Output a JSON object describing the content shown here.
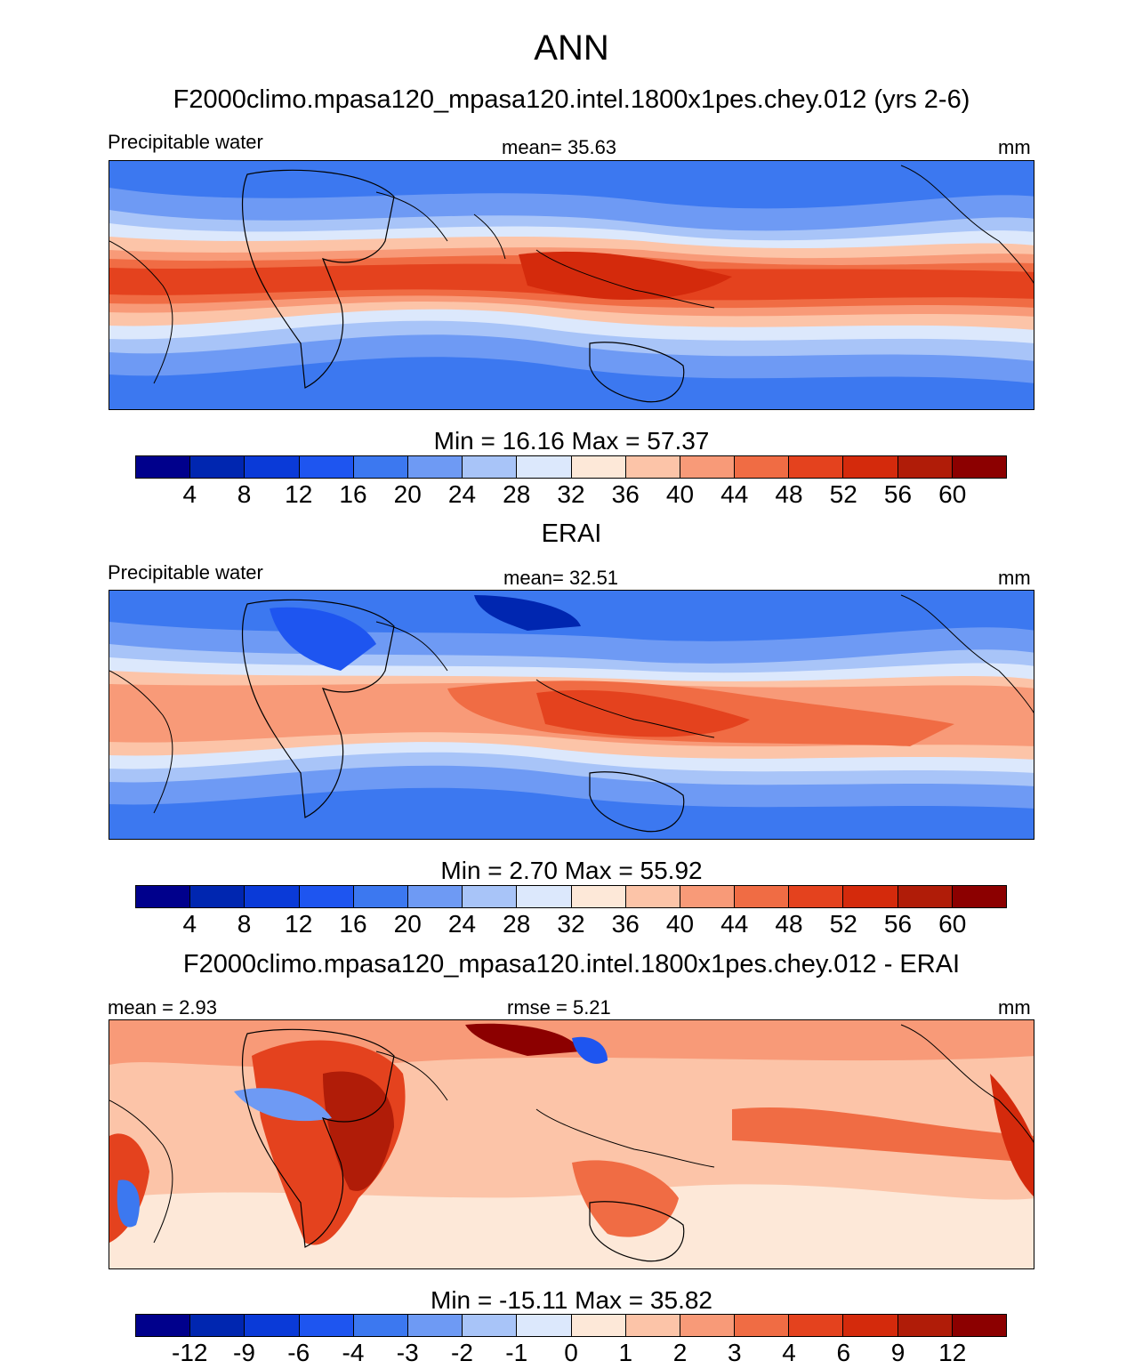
{
  "figure_title": "ANN",
  "units": "mm",
  "panels": [
    {
      "title": "F2000climo.mpasa120_mpasa120.intel.1800x1pes.chey.012 (yrs 2-6)",
      "left_label": "Precipitable water",
      "center_label": "mean=  35.63",
      "right_label": "mm",
      "minmax": "Min =  16.16 Max =  57.37",
      "colorbar_ticks": [
        "4",
        "8",
        "12",
        "16",
        "20",
        "24",
        "28",
        "32",
        "36",
        "40",
        "44",
        "48",
        "52",
        "56",
        "60"
      ]
    },
    {
      "title": "ERAI",
      "left_label": "Precipitable water",
      "center_label": "mean=  32.51",
      "right_label": "mm",
      "minmax": "Min =   2.70 Max =  55.92",
      "colorbar_ticks": [
        "4",
        "8",
        "12",
        "16",
        "20",
        "24",
        "28",
        "32",
        "36",
        "40",
        "44",
        "48",
        "52",
        "56",
        "60"
      ]
    },
    {
      "title": "F2000climo.mpasa120_mpasa120.intel.1800x1pes.chey.012 - ERAI",
      "left_label": "mean =   2.93",
      "center_label": "rmse =   5.21",
      "right_label": "mm",
      "minmax": "Min = -15.11 Max =  35.82",
      "colorbar_ticks": [
        "-12",
        "-9",
        "-6",
        "-4",
        "-3",
        "-2",
        "-1",
        "0",
        "1",
        "2",
        "3",
        "4",
        "6",
        "9",
        "12"
      ]
    }
  ],
  "colors": {
    "palette": [
      "#00008c",
      "#0026b0",
      "#0a3ad8",
      "#1e55f0",
      "#3c78f0",
      "#6e9af4",
      "#a8c4f8",
      "#dce8fc",
      "#fde8d8",
      "#fcc4a8",
      "#f89a78",
      "#f06c44",
      "#e4421e",
      "#d42a0c",
      "#b01c08",
      "#8c0000"
    ]
  }
}
